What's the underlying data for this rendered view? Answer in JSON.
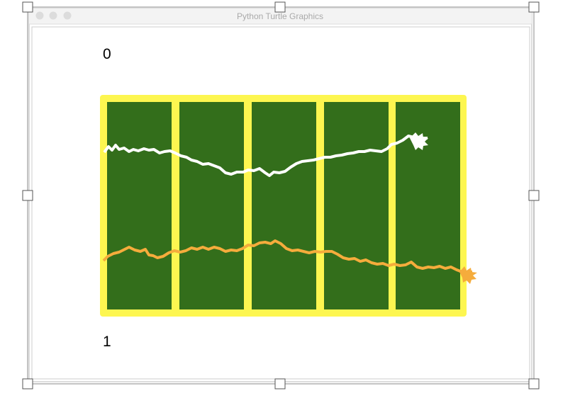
{
  "window": {
    "title": "Python Turtle Graphics"
  },
  "scores": {
    "top": "0",
    "bottom": "1"
  }
}
